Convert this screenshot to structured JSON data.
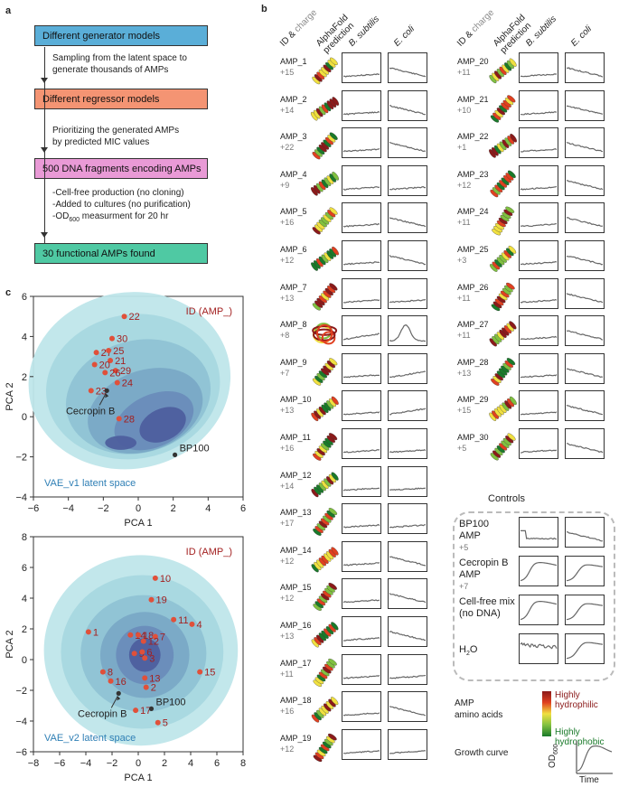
{
  "panel_a": {
    "label": "a",
    "boxes": [
      {
        "text": "Different generator models",
        "color": "#5aaed8"
      },
      {
        "text": "Different regressor models",
        "color": "#f49473"
      },
      {
        "text": "500 DNA fragments encoding AMPs",
        "color": "#e99ad6"
      },
      {
        "text": "30 functional AMPs found",
        "color": "#4fc9a3"
      }
    ],
    "steps": [
      [
        "Sampling from the latent space to",
        "generate thousands of AMPs"
      ],
      [
        "Prioritizing the generated AMPs",
        "by predicted MIC values"
      ],
      [
        "-Cell-free production (no cloning)",
        "-Added to cultures (no purification)",
        "-OD",
        "600",
        " measurment for 20 hr"
      ]
    ]
  },
  "panel_b": {
    "label": "b",
    "headers": {
      "id": "ID & ",
      "charge": "charge",
      "alphafold1": "AlphaFold",
      "alphafold2": "prediction",
      "bsub": "B. subtilis",
      "ecoli": "E. coli"
    },
    "amps_left": [
      {
        "id": "AMP_1",
        "charge": "+15"
      },
      {
        "id": "AMP_2",
        "charge": "+14"
      },
      {
        "id": "AMP_3",
        "charge": "+22"
      },
      {
        "id": "AMP_4",
        "charge": "+9"
      },
      {
        "id": "AMP_5",
        "charge": "+16"
      },
      {
        "id": "AMP_6",
        "charge": "+12"
      },
      {
        "id": "AMP_7",
        "charge": "+13"
      },
      {
        "id": "AMP_8",
        "charge": "+8"
      },
      {
        "id": "AMP_9",
        "charge": "+7"
      },
      {
        "id": "AMP_10",
        "charge": "+13"
      },
      {
        "id": "AMP_11",
        "charge": "+16"
      },
      {
        "id": "AMP_12",
        "charge": "+14"
      },
      {
        "id": "AMP_13",
        "charge": "+17"
      },
      {
        "id": "AMP_14",
        "charge": "+12"
      },
      {
        "id": "AMP_15",
        "charge": "+12"
      },
      {
        "id": "AMP_16",
        "charge": "+13"
      },
      {
        "id": "AMP_17",
        "charge": "+11"
      },
      {
        "id": "AMP_18",
        "charge": "+16"
      },
      {
        "id": "AMP_19",
        "charge": "+12"
      }
    ],
    "amps_right": [
      {
        "id": "AMP_20",
        "charge": "+11"
      },
      {
        "id": "AMP_21",
        "charge": "+10"
      },
      {
        "id": "AMP_22",
        "charge": "+1"
      },
      {
        "id": "AMP_23",
        "charge": "+12"
      },
      {
        "id": "AMP_24",
        "charge": "+11"
      },
      {
        "id": "AMP_25",
        "charge": "+3"
      },
      {
        "id": "AMP_26",
        "charge": "+11"
      },
      {
        "id": "AMP_27",
        "charge": "+11"
      },
      {
        "id": "AMP_28",
        "charge": "+13"
      },
      {
        "id": "AMP_29",
        "charge": "+15"
      },
      {
        "id": "AMP_30",
        "charge": "+5"
      }
    ],
    "controls_title": "Controls",
    "controls": [
      {
        "lines": [
          "BP100",
          "AMP"
        ],
        "charge": "+5"
      },
      {
        "lines": [
          "Cecropin B",
          "AMP"
        ],
        "charge": "+7"
      },
      {
        "lines": [
          "Cell-free mix",
          "(no DNA)"
        ],
        "charge": ""
      },
      {
        "lines": [
          "H",
          "2",
          "O"
        ],
        "charge": ""
      }
    ],
    "legend": {
      "title1": "AMP",
      "title2": "amino acids",
      "high": "Highly hydrophilic",
      "low": "Highly hydrophobic",
      "colors": [
        "#8b1a1a",
        "#e04020",
        "#f0e040",
        "#80c040",
        "#1a7a2a"
      ],
      "growth_title": "Growth curve",
      "ylabel": "OD",
      "ylabel_sub": "600",
      "xlabel": "Time"
    }
  },
  "panel_c": {
    "label": "c",
    "chart_data": [
      {
        "type": "scatter",
        "title": "VAE_v1 latent space",
        "xlabel": "PCA 1",
        "ylabel": "PCA 2",
        "xlim": [
          -6,
          6
        ],
        "ylim": [
          -4,
          6
        ],
        "xticks": [
          "−6",
          "−4",
          "−2",
          "0",
          "2",
          "4",
          "6"
        ],
        "yticks": [
          "−4",
          "−2",
          "0",
          "2",
          "4",
          "6"
        ],
        "legend": "ID (AMP_)",
        "points": [
          {
            "label": "22",
            "x": -0.8,
            "y": 5.0
          },
          {
            "label": "30",
            "x": -1.5,
            "y": 3.9
          },
          {
            "label": "27",
            "x": -2.4,
            "y": 3.2
          },
          {
            "label": "25",
            "x": -1.7,
            "y": 3.3
          },
          {
            "label": "21",
            "x": -1.6,
            "y": 2.8
          },
          {
            "label": "20",
            "x": -2.5,
            "y": 2.6
          },
          {
            "label": "29",
            "x": -1.3,
            "y": 2.3
          },
          {
            "label": "26",
            "x": -1.9,
            "y": 2.2
          },
          {
            "label": "24",
            "x": -1.2,
            "y": 1.7
          },
          {
            "label": "23",
            "x": -2.7,
            "y": 1.3
          },
          {
            "label": "28",
            "x": -1.1,
            "y": -0.1
          }
        ],
        "refs": [
          {
            "label": "Cecropin B",
            "x": -1.8,
            "y": 1.3
          },
          {
            "label": "BP100",
            "x": 2.1,
            "y": -1.9
          }
        ]
      },
      {
        "type": "scatter",
        "title": "VAE_v2 latent space",
        "xlabel": "PCA 1",
        "ylabel": "PCA 2",
        "xlim": [
          -8,
          8
        ],
        "ylim": [
          -6,
          8
        ],
        "xticks": [
          "−8",
          "−6",
          "−4",
          "−2",
          "0",
          "2",
          "4",
          "6",
          "8"
        ],
        "yticks": [
          "−6",
          "−4",
          "−2",
          "0",
          "2",
          "4",
          "6",
          "8"
        ],
        "legend": "ID (AMP_)",
        "points": [
          {
            "label": "10",
            "x": 1.3,
            "y": 5.3
          },
          {
            "label": "19",
            "x": 1.0,
            "y": 3.9
          },
          {
            "label": "11",
            "x": 2.7,
            "y": 2.6
          },
          {
            "label": "4",
            "x": 4.1,
            "y": 2.3
          },
          {
            "label": "1",
            "x": -3.8,
            "y": 1.8
          },
          {
            "label": "14",
            "x": -0.6,
            "y": 1.6
          },
          {
            "label": "18",
            "x": 0.0,
            "y": 1.6
          },
          {
            "label": "7",
            "x": 1.3,
            "y": 1.5
          },
          {
            "label": "12",
            "x": 0.4,
            "y": 1.2
          },
          {
            "label": "9",
            "x": -0.3,
            "y": 0.4
          },
          {
            "label": "6",
            "x": 0.3,
            "y": 0.5
          },
          {
            "label": "3",
            "x": 0.5,
            "y": 0.1
          },
          {
            "label": "8",
            "x": -2.7,
            "y": -0.8
          },
          {
            "label": "16",
            "x": -2.1,
            "y": -1.4
          },
          {
            "label": "13",
            "x": 0.5,
            "y": -1.2
          },
          {
            "label": "15",
            "x": 4.7,
            "y": -0.8
          },
          {
            "label": "2",
            "x": 0.6,
            "y": -1.8
          },
          {
            "label": "17",
            "x": -0.2,
            "y": -3.3
          },
          {
            "label": "5",
            "x": 1.5,
            "y": -4.1
          }
        ],
        "refs": [
          {
            "label": "Cecropin B",
            "x": -1.5,
            "y": -2.2
          },
          {
            "label": "BP100",
            "x": 1.0,
            "y": -3.2
          }
        ]
      }
    ]
  }
}
